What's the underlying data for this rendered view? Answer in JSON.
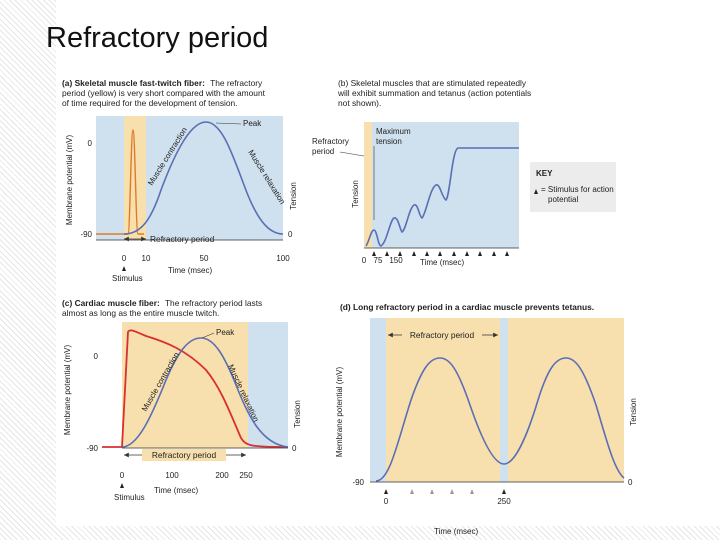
{
  "slide": {
    "title": "Refractory period"
  },
  "colors": {
    "panel_blue": "#cfe0ee",
    "refractory_yellow": "#f7dfae",
    "membrane_line": "#e07a2a",
    "cardiac_membrane": "#d83030",
    "tension_line": "#5a6fb4",
    "axis": "#333333"
  },
  "panel_a": {
    "caption_bold": "(a) Skeletal muscle fast-twitch fiber:",
    "caption_line1": "The refractory",
    "caption_line2": "period (yellow) is very short compared with the amount",
    "caption_line3": "of time required for the development of tension.",
    "y_left_label": "Membrane potential (mV)",
    "y_right_label": "Tension",
    "tick_0": "0",
    "tick_m90": "-90",
    "tick_right_0": "0",
    "peak_label": "Peak",
    "contraction_label": "Muscle contraction",
    "relaxation_label": "Muscle relaxation",
    "refractory_label": "Refractory period",
    "x_ticks": [
      "0",
      "10",
      "50",
      "100"
    ],
    "x_label": "Time (msec)",
    "stimulus_label": "Stimulus"
  },
  "panel_b": {
    "caption_line1": "(b) Skeletal muscles that are stimulated repeatedly",
    "caption_line2": "will exhibit summation and tetanus (action potentials",
    "caption_line3": "not shown).",
    "refractory_label_1": "Refractory",
    "refractory_label_2": "period",
    "max_tension_1": "Maximum",
    "max_tension_2": "tension",
    "y_label": "Tension",
    "x_ticks": [
      "0",
      "75",
      "150"
    ],
    "x_label": "Time (msec)",
    "key_title": "KEY",
    "key_line1": "= Stimulus for action",
    "key_line2": "potential"
  },
  "panel_c": {
    "caption_bold": "(c) Cardiac muscle fiber:",
    "caption_line1": "The refractory period lasts",
    "caption_line2": "almost as long as the entire muscle twitch.",
    "y_left_label": "Membrane potential (mV)",
    "y_right_label": "Tension",
    "tick_0": "0",
    "tick_m90": "-90",
    "tick_right_0": "0",
    "peak_label": "Peak",
    "contraction_label": "Muscle contraction",
    "relaxation_label": "Muscle relaxation",
    "refractory_label": "Refractory period",
    "x_ticks": [
      "0",
      "100",
      "200",
      "250"
    ],
    "x_label": "Time (msec)",
    "stimulus_label": "Stimulus"
  },
  "panel_d": {
    "caption": "(d) Long refractory period in a cardiac muscle prevents tetanus.",
    "refractory_label": "Refractory period",
    "y_left_label": "Membrane potential (mV)",
    "y_right_label": "Tension",
    "tick_m90": "-90",
    "tick_right_0": "0",
    "x_ticks": [
      "0",
      "250"
    ],
    "x_label": "Time (msec)"
  }
}
